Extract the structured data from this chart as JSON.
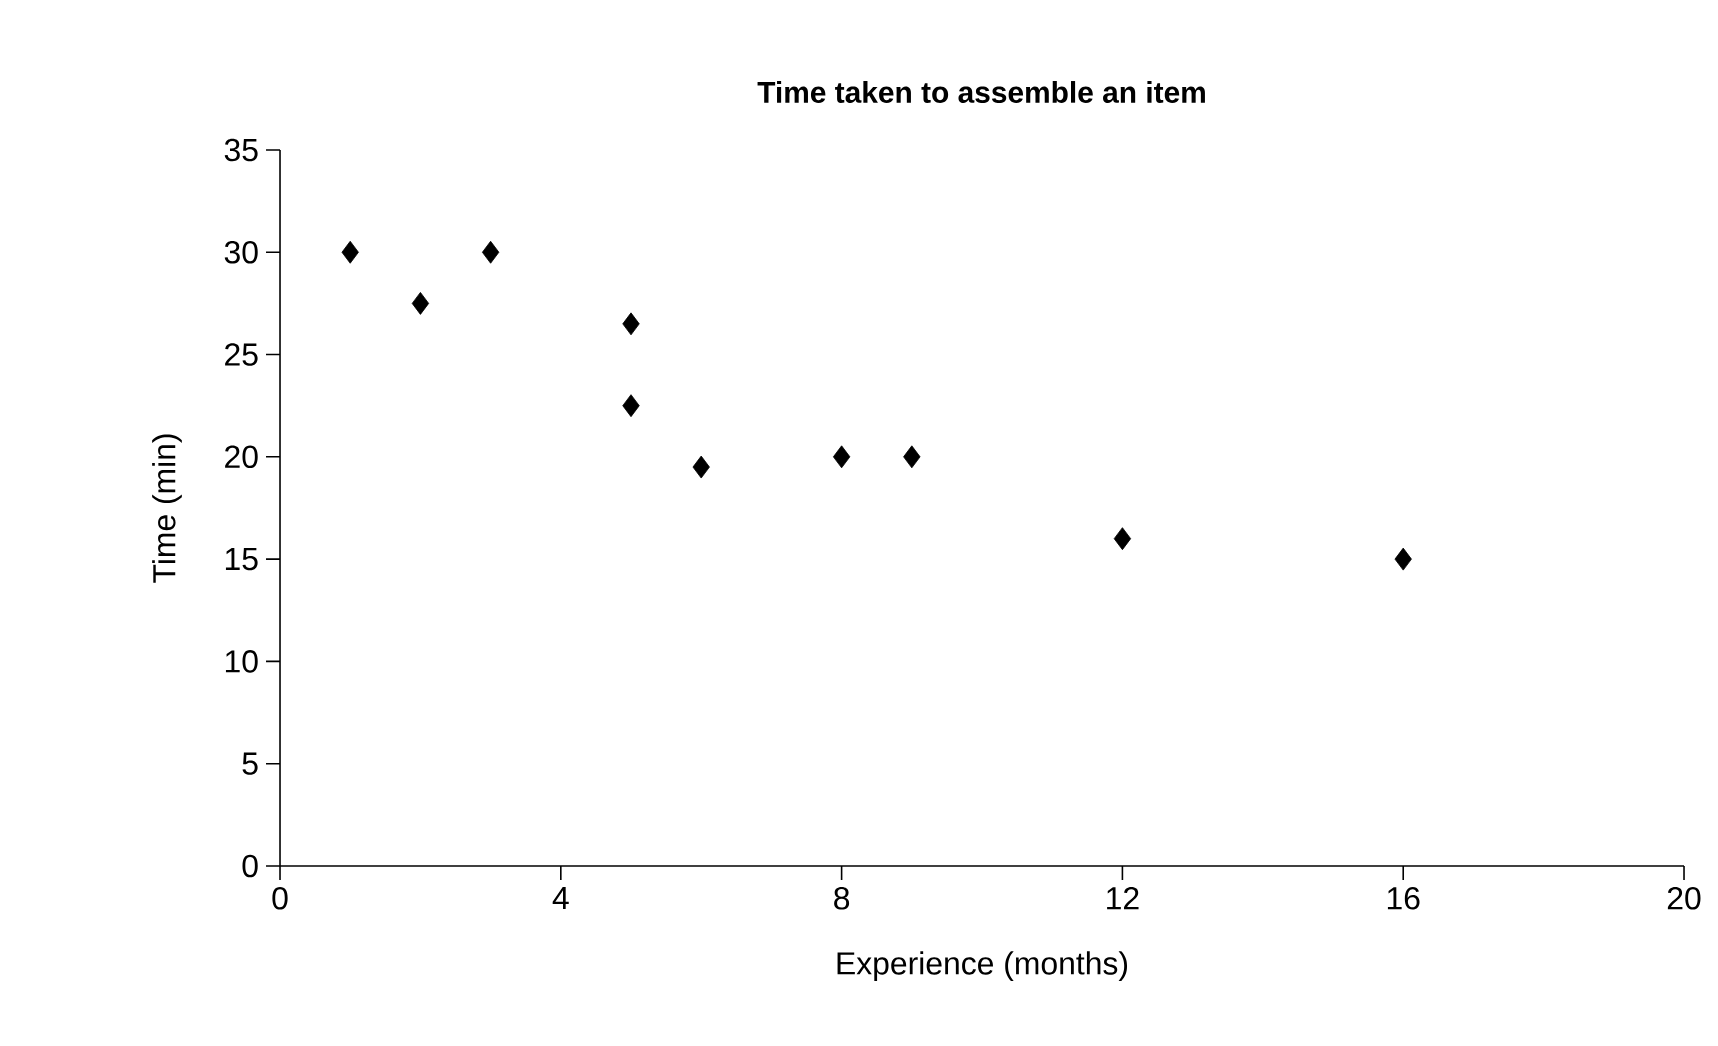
{
  "chart_data": {
    "type": "scatter",
    "title": "Time taken to assemble an item",
    "xlabel": "Experience (months)",
    "ylabel": "Time (min)",
    "x": [
      1,
      2,
      3,
      5,
      5,
      6,
      8,
      9,
      12,
      16
    ],
    "values": [
      30,
      27.5,
      30,
      26.5,
      22.5,
      19.5,
      20,
      20,
      16,
      15
    ],
    "color": "#000000",
    "marker": "diamond",
    "xlim": [
      0,
      20
    ],
    "xticks": [
      0,
      4,
      8,
      12,
      16,
      20
    ],
    "ylim": [
      0,
      35
    ],
    "yticks": [
      0,
      5,
      10,
      15,
      20,
      25,
      30,
      35
    ],
    "grid": false
  }
}
